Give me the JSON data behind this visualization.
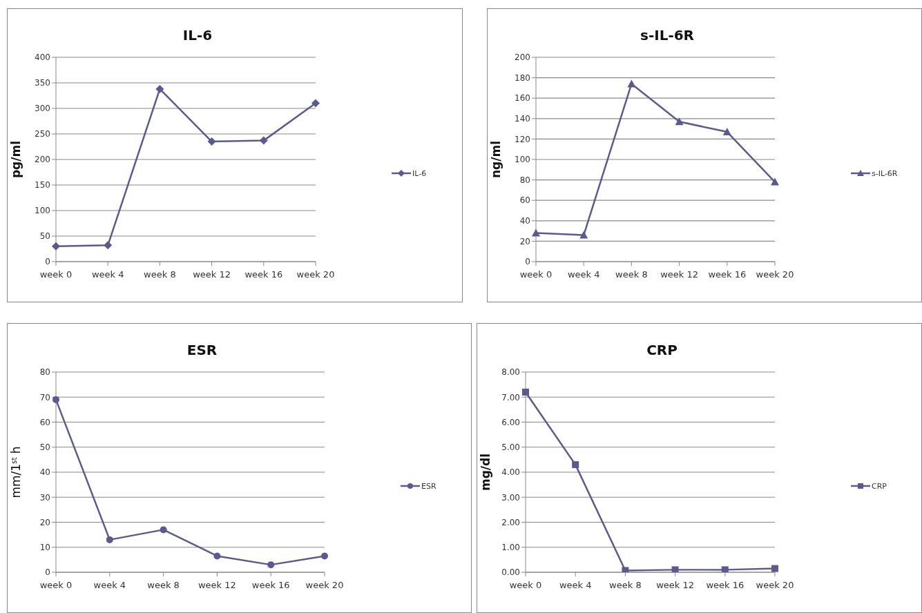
{
  "chart_data": [
    {
      "type": "line",
      "title": "IL-6",
      "ylabel": "pg/ml",
      "categories": [
        "week 0",
        "week 4",
        "week 8",
        "week 12",
        "week 16",
        "week 20"
      ],
      "series": [
        {
          "name": "IL-6",
          "color": "#5a5a8e",
          "values": [
            30,
            32,
            338,
            235,
            237,
            310
          ]
        }
      ],
      "ylim": [
        0,
        400
      ],
      "yticks": [
        0,
        50,
        100,
        150,
        200,
        250,
        300,
        350,
        400
      ],
      "grid": "y",
      "legend": "right",
      "marker": "diamond",
      "line_style": "solid"
    },
    {
      "type": "line",
      "title": "s-IL-6R",
      "ylabel": "ng/ml",
      "categories": [
        "week 0",
        "week 4",
        "week 8",
        "week 12",
        "week 16",
        "week 20"
      ],
      "series": [
        {
          "name": "s-IL-6R",
          "color": "#5a5a8e",
          "values": [
            28,
            26,
            174,
            137,
            127,
            78
          ]
        }
      ],
      "ylim": [
        0,
        200
      ],
      "yticks": [
        0,
        20,
        40,
        60,
        80,
        100,
        120,
        140,
        160,
        180,
        200
      ],
      "grid": "y",
      "legend": "right",
      "marker": "triangle",
      "line_style": "solid"
    },
    {
      "type": "line",
      "title": "ESR",
      "ylabel": "mm/1$^{st}$ h",
      "categories": [
        "week 0",
        "week 4",
        "week 8",
        "week 12",
        "week 16",
        "week 20"
      ],
      "series": [
        {
          "name": "ESR",
          "color": "#5a5a8e",
          "values": [
            69,
            13,
            17,
            6.5,
            3,
            6.5
          ]
        }
      ],
      "ylim": [
        0,
        80
      ],
      "yticks": [
        0,
        10,
        20,
        30,
        40,
        50,
        60,
        70,
        80
      ],
      "grid": "y",
      "legend": "right",
      "marker": "circle",
      "line_style": "solid"
    },
    {
      "type": "line",
      "title": "CRP",
      "ylabel": "mg/dl",
      "categories": [
        "week 0",
        "week 4",
        "week 8",
        "week 12",
        "week 16",
        "week 20"
      ],
      "series": [
        {
          "name": "CRP",
          "color": "#5a5a8e",
          "values": [
            7.2,
            4.3,
            0.07,
            0.1,
            0.1,
            0.15
          ]
        }
      ],
      "ylim": [
        0,
        8
      ],
      "yticks": [
        {
          "value": 0,
          "label": "0.00"
        },
        {
          "value": 1,
          "label": "1.00"
        },
        {
          "value": 2,
          "label": "2.00"
        },
        {
          "value": 3,
          "label": "3.00"
        },
        {
          "value": 4,
          "label": "4.00"
        },
        {
          "value": 5,
          "label": "5.00"
        },
        {
          "value": 6,
          "label": "6.00"
        },
        {
          "value": 7,
          "label": "7.00"
        },
        {
          "value": 8,
          "label": "8.00"
        }
      ],
      "grid": "y",
      "legend": "right",
      "marker": "square",
      "line_style": "solid"
    }
  ]
}
